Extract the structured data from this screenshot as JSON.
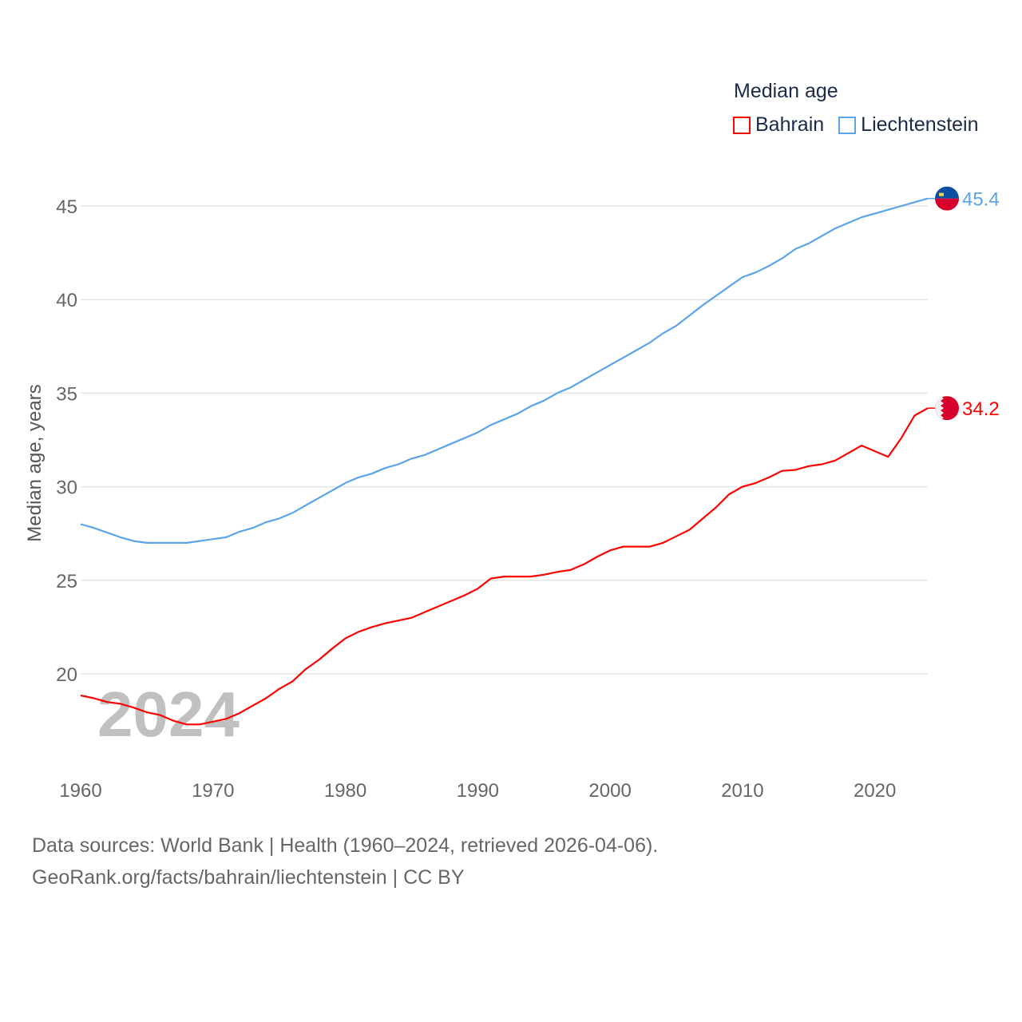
{
  "chart_data": {
    "type": "line",
    "title": "",
    "ylabel": "Median age, years",
    "xlabel": "",
    "xlim": [
      1960,
      2024
    ],
    "ylim": [
      15.6,
      47
    ],
    "yticks": [
      20,
      25,
      30,
      35,
      40,
      45
    ],
    "xticks": [
      1960,
      1970,
      1980,
      1990,
      2000,
      2010,
      2020
    ],
    "grid": true,
    "legend": {
      "title": "Median age",
      "placement": "top-right"
    },
    "watermark": "2024",
    "x": [
      1960,
      1961,
      1962,
      1963,
      1964,
      1965,
      1966,
      1967,
      1968,
      1969,
      1970,
      1971,
      1972,
      1973,
      1974,
      1975,
      1976,
      1977,
      1978,
      1979,
      1980,
      1981,
      1982,
      1983,
      1984,
      1985,
      1986,
      1987,
      1988,
      1989,
      1990,
      1991,
      1992,
      1993,
      1994,
      1995,
      1996,
      1997,
      1998,
      1999,
      2000,
      2001,
      2002,
      2003,
      2004,
      2005,
      2006,
      2007,
      2008,
      2009,
      2010,
      2011,
      2012,
      2013,
      2014,
      2015,
      2016,
      2017,
      2018,
      2019,
      2020,
      2021,
      2022,
      2023,
      2024
    ],
    "series": [
      {
        "name": "Bahrain",
        "color": "#ff0000",
        "end_label": "34.2",
        "values": [
          18.85,
          18.7,
          18.5,
          18.4,
          18.2,
          17.95,
          17.8,
          17.5,
          17.3,
          17.3,
          17.45,
          17.6,
          17.9,
          18.3,
          18.7,
          19.2,
          19.6,
          20.25,
          20.75,
          21.35,
          21.9,
          22.25,
          22.5,
          22.7,
          22.85,
          23.0,
          23.3,
          23.6,
          23.9,
          24.2,
          24.55,
          25.1,
          25.2,
          25.2,
          25.2,
          25.3,
          25.45,
          25.55,
          25.85,
          26.25,
          26.6,
          26.8,
          26.8,
          26.8,
          27.0,
          27.35,
          27.7,
          28.3,
          28.9,
          29.6,
          30.0,
          30.2,
          30.5,
          30.85,
          30.9,
          31.1,
          31.2,
          31.4,
          31.8,
          32.2,
          31.9,
          31.6,
          32.6,
          33.8,
          34.2
        ]
      },
      {
        "name": "Liechtenstein",
        "color": "#5ba4ea",
        "end_label": "45.4",
        "values": [
          28.0,
          27.8,
          27.55,
          27.3,
          27.1,
          27.0,
          27.0,
          27.0,
          27.0,
          27.1,
          27.2,
          27.3,
          27.6,
          27.8,
          28.1,
          28.3,
          28.6,
          29.0,
          29.4,
          29.8,
          30.2,
          30.5,
          30.7,
          31.0,
          31.2,
          31.5,
          31.7,
          32.0,
          32.3,
          32.6,
          32.9,
          33.3,
          33.6,
          33.9,
          34.3,
          34.6,
          35.0,
          35.3,
          35.7,
          36.1,
          36.5,
          36.9,
          37.3,
          37.7,
          38.2,
          38.6,
          39.15,
          39.7,
          40.2,
          40.7,
          41.2,
          41.45,
          41.8,
          42.2,
          42.7,
          43.0,
          43.4,
          43.8,
          44.1,
          44.4,
          44.6,
          44.8,
          45.0,
          45.2,
          45.4
        ]
      }
    ]
  },
  "footer": {
    "line1": "Data sources: World Bank | Health (1960–2024, retrieved 2026-04-06).",
    "line2": "GeoRank.org/facts/bahrain/liechtenstein | CC BY"
  }
}
